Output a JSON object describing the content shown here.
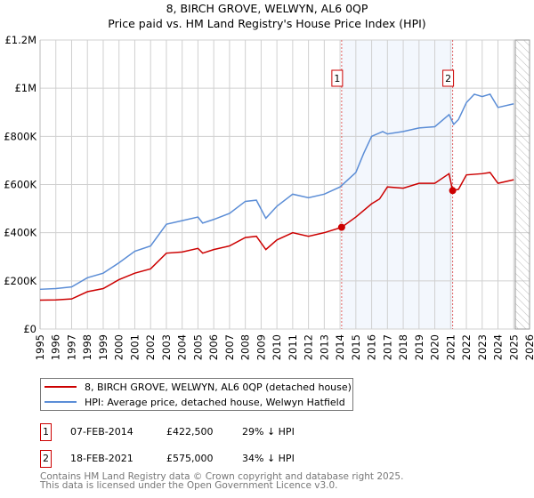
{
  "chart_data": {
    "type": "line",
    "title": "8, BIRCH GROVE, WELWYN, AL6 0QP",
    "subtitle": "Price paid vs. HM Land Registry's House Price Index (HPI)",
    "xlim": [
      1995,
      2026
    ],
    "ylim": [
      0,
      1200000
    ],
    "y_ticks": [
      {
        "v": 0,
        "label": "£0"
      },
      {
        "v": 200000,
        "label": "£200K"
      },
      {
        "v": 400000,
        "label": "£400K"
      },
      {
        "v": 600000,
        "label": "£600K"
      },
      {
        "v": 800000,
        "label": "£800K"
      },
      {
        "v": 1000000,
        "label": "£1M"
      },
      {
        "v": 1200000,
        "label": "£1.2M"
      }
    ],
    "x_ticks": [
      "1995",
      "1996",
      "1997",
      "1998",
      "1999",
      "2000",
      "2001",
      "2002",
      "2003",
      "2004",
      "2005",
      "2006",
      "2007",
      "2008",
      "2009",
      "2010",
      "2011",
      "2012",
      "2013",
      "2014",
      "2015",
      "2016",
      "2017",
      "2018",
      "2019",
      "2020",
      "2021",
      "2022",
      "2023",
      "2024",
      "2025",
      "2026"
    ],
    "grid": true,
    "shaded_range": [
      2014.1,
      2021.13
    ],
    "forecast_hatch_from": 2025.1,
    "series": [
      {
        "name": "8, BIRCH GROVE, WELWYN, AL6 0QP (detached house)",
        "color": "#cc0000",
        "x": [
          1995,
          1996,
          1997,
          1998,
          1999,
          2000,
          2001,
          2002,
          2003,
          2004,
          2005,
          2005.3,
          2006,
          2007,
          2008,
          2008.7,
          2009.3,
          2010,
          2011,
          2012,
          2013,
          2014.1,
          2015,
          2016,
          2016.5,
          2017,
          2018,
          2019,
          2020,
          2020.9,
          2021.13,
          2021.5,
          2022,
          2023,
          2023.5,
          2024,
          2025
        ],
        "y": [
          120000,
          121000,
          125000,
          155000,
          168000,
          205000,
          232000,
          250000,
          315000,
          320000,
          335000,
          315000,
          330000,
          345000,
          380000,
          385000,
          330000,
          370000,
          400000,
          385000,
          400000,
          422500,
          465000,
          520000,
          540000,
          590000,
          585000,
          605000,
          605000,
          645000,
          575000,
          580000,
          640000,
          645000,
          650000,
          605000,
          620000
        ]
      },
      {
        "name": "HPI: Average price, detached house, Welwyn Hatfield",
        "color": "#5b8dd6",
        "x": [
          1995,
          1996,
          1997,
          1998,
          1999,
          2000,
          2001,
          2002,
          2003,
          2004,
          2005,
          2005.3,
          2006,
          2007,
          2008,
          2008.7,
          2009.3,
          2010,
          2011,
          2012,
          2013,
          2014,
          2015,
          2015.5,
          2016,
          2016.7,
          2017,
          2018,
          2019,
          2020,
          2020.9,
          2021.2,
          2021.5,
          2022,
          2022.5,
          2023,
          2023.5,
          2024,
          2025
        ],
        "y": [
          165000,
          168000,
          175000,
          213000,
          232000,
          275000,
          323000,
          345000,
          435000,
          450000,
          465000,
          440000,
          455000,
          480000,
          530000,
          535000,
          460000,
          510000,
          560000,
          545000,
          560000,
          590000,
          650000,
          730000,
          800000,
          820000,
          810000,
          820000,
          835000,
          840000,
          890000,
          850000,
          870000,
          940000,
          975000,
          965000,
          975000,
          920000,
          935000
        ]
      }
    ],
    "markers": [
      {
        "id": "1",
        "x": 2014.1,
        "y": 422500
      },
      {
        "id": "2",
        "x": 2021.13,
        "y": 575000
      }
    ]
  },
  "legend": [
    "8, BIRCH GROVE, WELWYN, AL6 0QP (detached house)",
    "HPI: Average price, detached house, Welwyn Hatfield"
  ],
  "transactions": [
    {
      "id": "1",
      "date": "07-FEB-2014",
      "price": "£422,500",
      "delta": "29% ↓ HPI"
    },
    {
      "id": "2",
      "date": "18-FEB-2021",
      "price": "£575,000",
      "delta": "34% ↓ HPI"
    }
  ],
  "footer": [
    "Contains HM Land Registry data © Crown copyright and database right 2025.",
    "This data is licensed under the Open Government Licence v3.0."
  ]
}
